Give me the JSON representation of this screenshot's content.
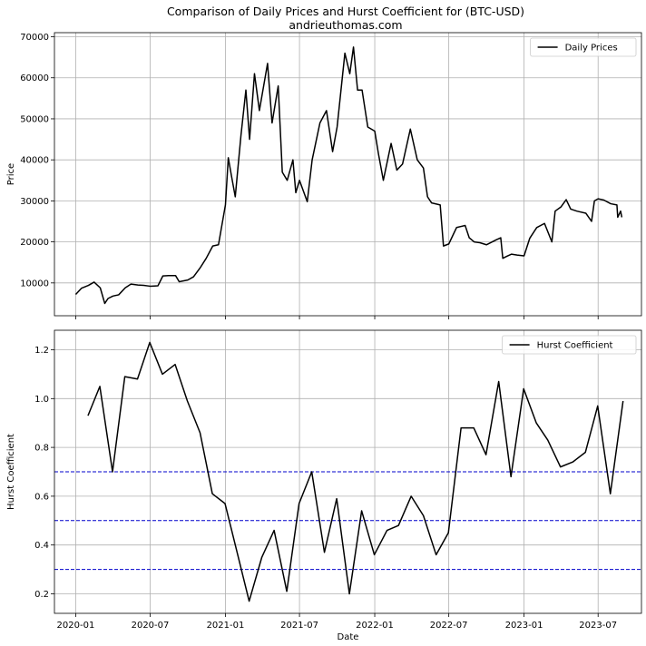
{
  "figure": {
    "title_line1": "Comparison of Daily Prices and Hurst Coefficient for (BTC-USD)",
    "title_line2": "andrieuthomas.com"
  },
  "chart_data": [
    {
      "type": "line",
      "ylabel": "Price",
      "xlabel": "",
      "xlim": [
        "2019-11-10",
        "2023-10-15"
      ],
      "ylim": [
        2000,
        71000
      ],
      "yticks": [
        10000,
        20000,
        30000,
        40000,
        50000,
        60000,
        70000
      ],
      "xticks": [
        "2020-01-01",
        "2020-07-01",
        "2021-01-01",
        "2021-07-01",
        "2022-01-01",
        "2022-07-01",
        "2023-01-01",
        "2023-07-01"
      ],
      "show_xtick_labels": false,
      "grid": true,
      "legend": "upper right",
      "series": [
        {
          "name": "Daily Prices",
          "color": "#000000",
          "points": [
            [
              "2020-01-01",
              7200
            ],
            [
              "2020-01-15",
              8700
            ],
            [
              "2020-02-01",
              9400
            ],
            [
              "2020-02-15",
              10200
            ],
            [
              "2020-03-01",
              8800
            ],
            [
              "2020-03-12",
              5000
            ],
            [
              "2020-03-20",
              6200
            ],
            [
              "2020-04-01",
              6800
            ],
            [
              "2020-04-15",
              7100
            ],
            [
              "2020-05-01",
              8800
            ],
            [
              "2020-05-15",
              9700
            ],
            [
              "2020-06-01",
              9500
            ],
            [
              "2020-06-15",
              9400
            ],
            [
              "2020-07-01",
              9200
            ],
            [
              "2020-07-20",
              9300
            ],
            [
              "2020-08-01",
              11700
            ],
            [
              "2020-08-15",
              11800
            ],
            [
              "2020-09-01",
              11800
            ],
            [
              "2020-09-10",
              10300
            ],
            [
              "2020-10-01",
              10700
            ],
            [
              "2020-10-15",
              11500
            ],
            [
              "2020-11-01",
              13800
            ],
            [
              "2020-11-15",
              16000
            ],
            [
              "2020-12-01",
              19000
            ],
            [
              "2020-12-15",
              19300
            ],
            [
              "2021-01-01",
              29000
            ],
            [
              "2021-01-08",
              40500
            ],
            [
              "2021-01-15",
              36500
            ],
            [
              "2021-01-25",
              31000
            ],
            [
              "2021-02-08",
              46000
            ],
            [
              "2021-02-20",
              57000
            ],
            [
              "2021-03-01",
              45000
            ],
            [
              "2021-03-13",
              61000
            ],
            [
              "2021-03-25",
              52000
            ],
            [
              "2021-04-14",
              63500
            ],
            [
              "2021-04-25",
              49000
            ],
            [
              "2021-05-10",
              58000
            ],
            [
              "2021-05-20",
              37000
            ],
            [
              "2021-06-01",
              35000
            ],
            [
              "2021-06-15",
              40000
            ],
            [
              "2021-06-22",
              32000
            ],
            [
              "2021-07-01",
              35000
            ],
            [
              "2021-07-20",
              29800
            ],
            [
              "2021-08-01",
              40000
            ],
            [
              "2021-08-20",
              49000
            ],
            [
              "2021-09-05",
              52000
            ],
            [
              "2021-09-20",
              42000
            ],
            [
              "2021-10-01",
              48000
            ],
            [
              "2021-10-20",
              66000
            ],
            [
              "2021-11-01",
              61000
            ],
            [
              "2021-11-10",
              67500
            ],
            [
              "2021-11-20",
              57000
            ],
            [
              "2021-12-01",
              57000
            ],
            [
              "2021-12-15",
              48000
            ],
            [
              "2022-01-01",
              47000
            ],
            [
              "2022-01-10",
              41500
            ],
            [
              "2022-01-22",
              35000
            ],
            [
              "2022-02-10",
              44000
            ],
            [
              "2022-02-24",
              37500
            ],
            [
              "2022-03-10",
              39000
            ],
            [
              "2022-03-29",
              47500
            ],
            [
              "2022-04-15",
              40000
            ],
            [
              "2022-04-30",
              38000
            ],
            [
              "2022-05-10",
              31000
            ],
            [
              "2022-05-20",
              29500
            ],
            [
              "2022-06-10",
              29000
            ],
            [
              "2022-06-18",
              19000
            ],
            [
              "2022-07-01",
              19500
            ],
            [
              "2022-07-20",
              23500
            ],
            [
              "2022-08-10",
              24000
            ],
            [
              "2022-08-20",
              21000
            ],
            [
              "2022-09-01",
              20000
            ],
            [
              "2022-09-15",
              19800
            ],
            [
              "2022-10-01",
              19300
            ],
            [
              "2022-10-25",
              20500
            ],
            [
              "2022-11-05",
              21000
            ],
            [
              "2022-11-10",
              16000
            ],
            [
              "2022-11-20",
              16500
            ],
            [
              "2022-12-01",
              17000
            ],
            [
              "2022-12-15",
              16800
            ],
            [
              "2023-01-01",
              16600
            ],
            [
              "2023-01-15",
              20900
            ],
            [
              "2023-02-01",
              23500
            ],
            [
              "2023-02-20",
              24500
            ],
            [
              "2023-03-10",
              20000
            ],
            [
              "2023-03-18",
              27500
            ],
            [
              "2023-04-01",
              28500
            ],
            [
              "2023-04-14",
              30300
            ],
            [
              "2023-04-25",
              28000
            ],
            [
              "2023-05-10",
              27500
            ],
            [
              "2023-06-01",
              27000
            ],
            [
              "2023-06-15",
              25000
            ],
            [
              "2023-06-22",
              30000
            ],
            [
              "2023-07-01",
              30500
            ],
            [
              "2023-07-15",
              30200
            ],
            [
              "2023-08-01",
              29300
            ],
            [
              "2023-08-16",
              29000
            ],
            [
              "2023-08-18",
              26000
            ],
            [
              "2023-08-25",
              27500
            ],
            [
              "2023-08-28",
              26000
            ]
          ]
        }
      ]
    },
    {
      "type": "line",
      "ylabel": "Hurst Coefficient",
      "xlabel": "Date",
      "xlim": [
        "2019-11-10",
        "2023-10-15"
      ],
      "ylim": [
        0.12,
        1.28
      ],
      "yticks": [
        0.2,
        0.4,
        0.6,
        0.8,
        1.0,
        1.2
      ],
      "xticks": [
        "2020-01",
        "2020-07",
        "2021-01",
        "2021-07",
        "2022-01",
        "2022-07",
        "2023-01",
        "2023-07"
      ],
      "xtick_dates": [
        "2020-01-01",
        "2020-07-01",
        "2021-01-01",
        "2021-07-01",
        "2022-01-01",
        "2022-07-01",
        "2023-01-01",
        "2023-07-01"
      ],
      "show_xtick_labels": true,
      "grid": true,
      "legend": "upper right",
      "hlines": [
        {
          "y": 0.3,
          "color": "#0000cc",
          "style": "dashed"
        },
        {
          "y": 0.5,
          "color": "#0000cc",
          "style": "dashed"
        },
        {
          "y": 0.7,
          "color": "#0000cc",
          "style": "dashed"
        }
      ],
      "series": [
        {
          "name": "Hurst Coefficient",
          "color": "#000000",
          "points": [
            [
              "2020-01-31",
              0.93
            ],
            [
              "2020-02-29",
              1.05
            ],
            [
              "2020-03-31",
              0.7
            ],
            [
              "2020-04-30",
              1.09
            ],
            [
              "2020-05-31",
              1.08
            ],
            [
              "2020-06-30",
              1.23
            ],
            [
              "2020-07-31",
              1.1
            ],
            [
              "2020-08-31",
              1.14
            ],
            [
              "2020-09-30",
              0.99
            ],
            [
              "2020-10-31",
              0.86
            ],
            [
              "2020-11-30",
              0.61
            ],
            [
              "2020-12-31",
              0.57
            ],
            [
              "2021-01-31",
              0.36
            ],
            [
              "2021-02-28",
              0.17
            ],
            [
              "2021-03-31",
              0.35
            ],
            [
              "2021-04-30",
              0.46
            ],
            [
              "2021-05-31",
              0.21
            ],
            [
              "2021-06-30",
              0.57
            ],
            [
              "2021-07-31",
              0.7
            ],
            [
              "2021-08-31",
              0.37
            ],
            [
              "2021-09-30",
              0.59
            ],
            [
              "2021-10-31",
              0.2
            ],
            [
              "2021-11-30",
              0.54
            ],
            [
              "2021-12-31",
              0.36
            ],
            [
              "2022-01-31",
              0.46
            ],
            [
              "2022-02-28",
              0.48
            ],
            [
              "2022-03-31",
              0.6
            ],
            [
              "2022-04-30",
              0.52
            ],
            [
              "2022-05-31",
              0.36
            ],
            [
              "2022-06-30",
              0.45
            ],
            [
              "2022-07-31",
              0.88
            ],
            [
              "2022-08-31",
              0.88
            ],
            [
              "2022-09-30",
              0.77
            ],
            [
              "2022-10-31",
              1.07
            ],
            [
              "2022-11-30",
              0.68
            ],
            [
              "2022-12-31",
              1.04
            ],
            [
              "2023-01-31",
              0.9
            ],
            [
              "2023-02-28",
              0.83
            ],
            [
              "2023-03-31",
              0.72
            ],
            [
              "2023-04-30",
              0.74
            ],
            [
              "2023-05-31",
              0.78
            ],
            [
              "2023-06-30",
              0.97
            ],
            [
              "2023-07-31",
              0.61
            ],
            [
              "2023-08-31",
              0.99
            ]
          ]
        }
      ]
    }
  ]
}
